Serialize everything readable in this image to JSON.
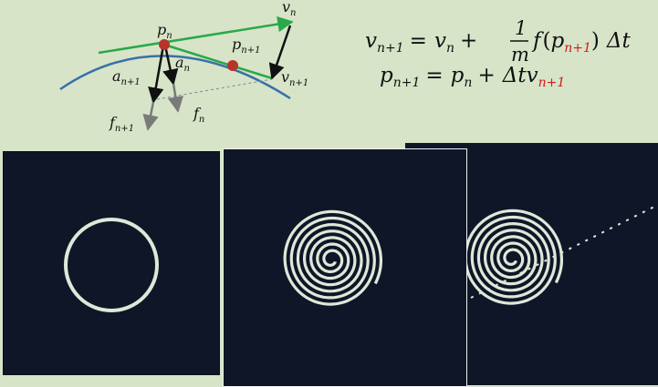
{
  "diagram": {
    "labels": {
      "p_n": {
        "base": "p",
        "sub": "n"
      },
      "v_n": {
        "base": "v",
        "sub": "n"
      },
      "a_n": {
        "base": "a",
        "sub": "n"
      },
      "f_n": {
        "base": "f",
        "sub": "n"
      },
      "a_n1": {
        "base": "a",
        "sub": "n+1"
      },
      "f_n1": {
        "base": "f",
        "sub": "n+1"
      },
      "p_n1": {
        "base": "p",
        "sub": "n+1"
      },
      "v_n1": {
        "base": "v",
        "sub": "n+1"
      }
    },
    "colors": {
      "trajectory": "#3a6fa8",
      "velocity": "#2aa84a",
      "point": "#b8342a",
      "acceleration": "#111111",
      "force": "#7a7a7a"
    }
  },
  "equations": {
    "velocity_update": {
      "lhs_base": "v",
      "lhs_sub": "n+1",
      "eq": "=",
      "v_base": "v",
      "v_sub": "n",
      "plus": "+",
      "frac_num": "1",
      "frac_den": "m",
      "f_base": "f",
      "paren_open": "(",
      "p_base": "p",
      "p_sub": "n+1",
      "paren_close": ")",
      "dt": "Δt"
    },
    "position_update": {
      "lhs_base": "p",
      "lhs_sub": "n+1",
      "eq": "=",
      "p_base": "p",
      "p_sub": "n",
      "plus": "+",
      "dt": "Δt",
      "v_base": "v",
      "v_sub": "n+1"
    },
    "highlight_color": "#d01c1c"
  },
  "panels": [
    {
      "id": "circle-orbit",
      "shape": "circle"
    },
    {
      "id": "spiral-orbit",
      "shape": "spiral"
    },
    {
      "id": "spiral-escape-orbit",
      "shape": "spiral-with-escape"
    }
  ],
  "panel_colors": {
    "background": "#0f1628",
    "trace": "#dfe8d8"
  }
}
